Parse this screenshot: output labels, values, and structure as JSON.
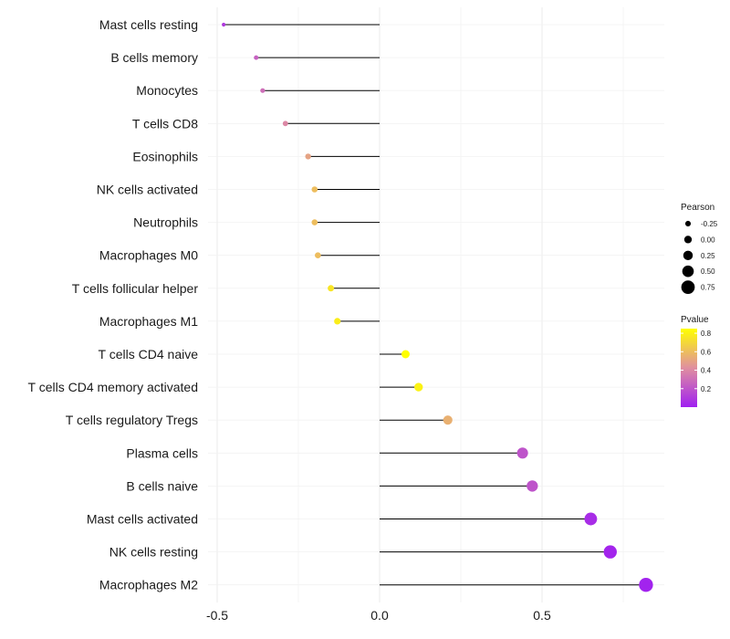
{
  "chart_data": {
    "type": "lollipop",
    "categories": [
      "Mast cells resting",
      "B cells memory",
      "Monocytes",
      "T cells CD8",
      "Eosinophils",
      "NK cells activated",
      "Neutrophils",
      "Macrophages M0",
      "T cells follicular helper",
      "Macrophages M1",
      "T cells CD4 naive",
      "T cells CD4 memory activated",
      "T cells regulatory  Tregs ",
      "Plasma cells",
      "B cells naive",
      "Mast cells activated",
      "NK cells resting",
      "Macrophages M2"
    ],
    "values": [
      -0.48,
      -0.38,
      -0.36,
      -0.29,
      -0.22,
      -0.2,
      -0.2,
      -0.19,
      -0.15,
      -0.13,
      0.08,
      0.12,
      0.21,
      0.44,
      0.47,
      0.65,
      0.71,
      0.82
    ],
    "pvalues": [
      0.1,
      0.25,
      0.3,
      0.4,
      0.5,
      0.6,
      0.6,
      0.6,
      0.75,
      0.78,
      0.85,
      0.8,
      0.55,
      0.2,
      0.2,
      0.05,
      0.02,
      0.01
    ],
    "xlim": [
      -0.5,
      0.85
    ],
    "xticks": [
      -0.5,
      0.0,
      0.5
    ],
    "xtick_labels": [
      "-0.5",
      "0.0",
      "0.5"
    ],
    "title": "",
    "xlabel": "",
    "ylabel": "",
    "grid": true,
    "legend": {
      "size": {
        "title": "Pearson",
        "values": [
          -0.25,
          0.0,
          0.25,
          0.5,
          0.75
        ],
        "labels": [
          "-0.25",
          "0.00",
          "0.25",
          "0.50",
          "0.75"
        ]
      },
      "color": {
        "title": "Pvalue",
        "range": [
          0.0,
          0.85
        ],
        "ticks": [
          0.8,
          0.6,
          0.4,
          0.2
        ],
        "labels": [
          "0.8",
          "0.6",
          "0.4",
          "0.2"
        ],
        "low_color": "#a020f0",
        "mid_color": "#e08fa0",
        "high_color": "#ffff00"
      },
      "placement": "right"
    }
  }
}
